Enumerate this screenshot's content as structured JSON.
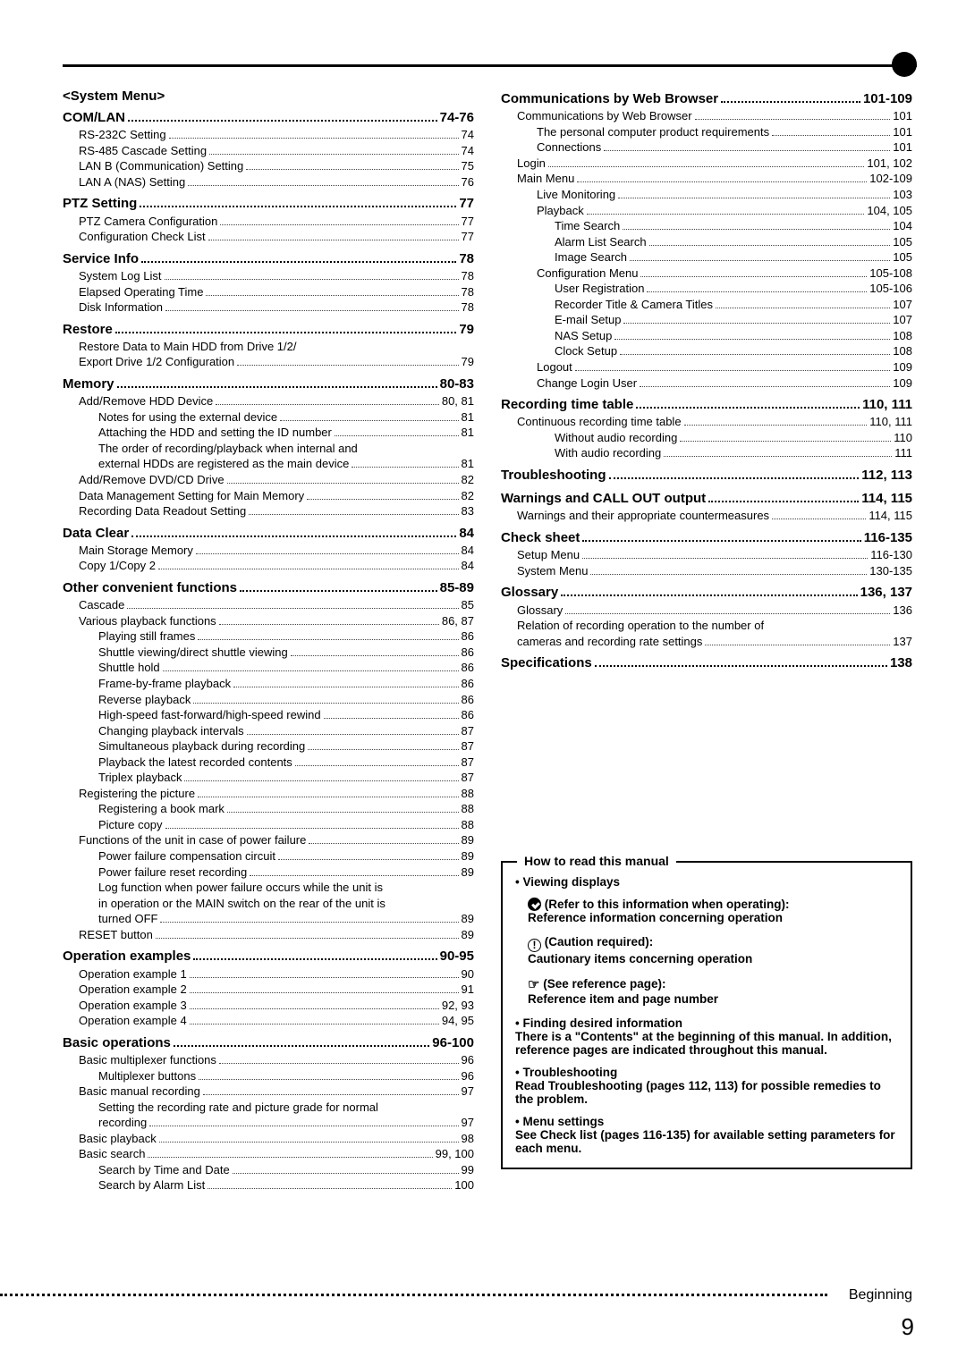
{
  "page_number": "9",
  "bottom_label": "Beginning",
  "left": {
    "system_menu_heading": "<System Menu>",
    "sections": [
      {
        "type": "bold",
        "label": "COM/LAN",
        "pg": "74-76"
      },
      {
        "type": "sub1",
        "label": "RS-232C Setting",
        "pg": "74"
      },
      {
        "type": "sub1",
        "label": "RS-485 Cascade Setting",
        "pg": "74"
      },
      {
        "type": "sub1",
        "label": "LAN B (Communication) Setting",
        "pg": "75"
      },
      {
        "type": "sub1",
        "label": "LAN A (NAS) Setting",
        "pg": "76"
      },
      {
        "type": "bold",
        "label": "PTZ Setting",
        "pg": "77"
      },
      {
        "type": "sub1",
        "label": "PTZ Camera Configuration",
        "pg": "77"
      },
      {
        "type": "sub1",
        "label": "Configuration Check List",
        "pg": "77"
      },
      {
        "type": "bold",
        "label": "Service Info",
        "pg": "78"
      },
      {
        "type": "sub1",
        "label": "System Log List",
        "pg": "78"
      },
      {
        "type": "sub1",
        "label": "Elapsed Operating Time",
        "pg": "78"
      },
      {
        "type": "sub1",
        "label": "Disk Information",
        "pg": "78"
      },
      {
        "type": "bold",
        "label": "Restore",
        "pg": "79"
      },
      {
        "type": "wrap1",
        "label": "Restore Data to Main HDD from Drive 1/2/"
      },
      {
        "type": "sub1",
        "label": "Export Drive 1/2 Configuration",
        "pg": "79"
      },
      {
        "type": "bold",
        "label": "Memory",
        "pg": "80-83"
      },
      {
        "type": "sub1",
        "label": "Add/Remove HDD Device",
        "pg": "80, 81"
      },
      {
        "type": "sub2",
        "label": "Notes for using the external device",
        "pg": "81"
      },
      {
        "type": "sub2",
        "label": "Attaching the HDD and setting the ID number",
        "pg": "81"
      },
      {
        "type": "wrap2",
        "label": "The order of recording/playback when internal and"
      },
      {
        "type": "sub2",
        "label": "external HDDs are registered as the main device",
        "pg": "81",
        "tight": true
      },
      {
        "type": "sub1",
        "label": "Add/Remove DVD/CD Drive",
        "pg": "82"
      },
      {
        "type": "sub1",
        "label": "Data Management Setting for Main Memory",
        "pg": "82"
      },
      {
        "type": "sub1",
        "label": "Recording Data Readout Setting",
        "pg": "83"
      },
      {
        "type": "bold",
        "label": "Data Clear",
        "pg": "84"
      },
      {
        "type": "sub1",
        "label": "Main Storage Memory",
        "pg": "84"
      },
      {
        "type": "sub1",
        "label": "Copy 1/Copy 2",
        "pg": "84"
      },
      {
        "type": "bold",
        "label": "Other convenient functions",
        "pg": "85-89"
      },
      {
        "type": "sub1",
        "label": "Cascade",
        "pg": "85"
      },
      {
        "type": "sub1",
        "label": "Various playback functions",
        "pg": "86, 87"
      },
      {
        "type": "sub2",
        "label": "Playing still frames",
        "pg": "86"
      },
      {
        "type": "sub2",
        "label": "Shuttle viewing/direct shuttle viewing",
        "pg": "86"
      },
      {
        "type": "sub2",
        "label": "Shuttle hold",
        "pg": "86"
      },
      {
        "type": "sub2",
        "label": "Frame-by-frame playback",
        "pg": "86"
      },
      {
        "type": "sub2",
        "label": "Reverse playback",
        "pg": "86"
      },
      {
        "type": "sub2",
        "label": "High-speed fast-forward/high-speed rewind",
        "pg": "86"
      },
      {
        "type": "sub2",
        "label": "Changing playback intervals",
        "pg": "87"
      },
      {
        "type": "sub2",
        "label": "Simultaneous playback during recording",
        "pg": "87"
      },
      {
        "type": "sub2",
        "label": "Playback the latest recorded contents",
        "pg": "87"
      },
      {
        "type": "sub2",
        "label": "Triplex playback",
        "pg": "87"
      },
      {
        "type": "sub1",
        "label": "Registering the picture",
        "pg": "88"
      },
      {
        "type": "sub2",
        "label": "Registering a book mark",
        "pg": "88"
      },
      {
        "type": "sub2",
        "label": "Picture copy",
        "pg": "88"
      },
      {
        "type": "sub1",
        "label": "Functions of the unit in case of power failure",
        "pg": "89"
      },
      {
        "type": "sub2",
        "label": "Power failure compensation circuit",
        "pg": "89"
      },
      {
        "type": "sub2",
        "label": "Power failure reset recording",
        "pg": "89"
      },
      {
        "type": "wrap2",
        "label": "Log function when power failure occurs while the unit is"
      },
      {
        "type": "wrap2",
        "label": "in operation or the MAIN switch on the rear of the unit is"
      },
      {
        "type": "sub2",
        "label": "turned OFF",
        "pg": "89"
      },
      {
        "type": "sub1",
        "label": "RESET button",
        "pg": "89"
      },
      {
        "type": "bold",
        "label": "Operation examples",
        "pg": "90-95"
      },
      {
        "type": "sub1",
        "label": "Operation example 1",
        "pg": "90"
      },
      {
        "type": "sub1",
        "label": "Operation example 2",
        "pg": "91"
      },
      {
        "type": "sub1",
        "label": "Operation example 3",
        "pg": "92, 93"
      },
      {
        "type": "sub1",
        "label": "Operation example 4",
        "pg": "94, 95"
      },
      {
        "type": "bold",
        "label": "Basic operations",
        "pg": "96-100"
      },
      {
        "type": "sub1",
        "label": "Basic multiplexer functions",
        "pg": "96"
      },
      {
        "type": "sub2",
        "label": "Multiplexer buttons",
        "pg": "96"
      },
      {
        "type": "sub1",
        "label": "Basic manual recording",
        "pg": "97"
      },
      {
        "type": "wrap2",
        "label": "Setting the recording rate and picture grade for normal"
      },
      {
        "type": "sub2",
        "label": "recording",
        "pg": "97"
      },
      {
        "type": "sub1",
        "label": "Basic playback",
        "pg": "98"
      },
      {
        "type": "sub1",
        "label": "Basic search",
        "pg": "99, 100"
      },
      {
        "type": "sub2",
        "label": "Search by Time and Date",
        "pg": "99"
      },
      {
        "type": "sub2",
        "label": "Search by Alarm List",
        "pg": "100"
      }
    ]
  },
  "right": {
    "sections": [
      {
        "type": "bold",
        "label": "Communications by Web Browser",
        "pg": "101-109"
      },
      {
        "type": "sub1",
        "label": "Communications by Web Browser",
        "pg": "101"
      },
      {
        "type": "sub2",
        "label": "The personal computer product requirements",
        "pg": "101"
      },
      {
        "type": "sub2",
        "label": "Connections",
        "pg": "101"
      },
      {
        "type": "sub1",
        "label": "Login",
        "pg": "101, 102"
      },
      {
        "type": "sub1",
        "label": "Main Menu",
        "pg": "102-109"
      },
      {
        "type": "sub2",
        "label": "Live Monitoring",
        "pg": "103"
      },
      {
        "type": "sub2",
        "label": "Playback",
        "pg": "104, 105"
      },
      {
        "type": "sub3",
        "label": "Time Search",
        "pg": "104"
      },
      {
        "type": "sub3",
        "label": "Alarm List Search",
        "pg": "105"
      },
      {
        "type": "sub3",
        "label": "Image Search",
        "pg": "105"
      },
      {
        "type": "sub2",
        "label": "Configuration Menu",
        "pg": "105-108"
      },
      {
        "type": "sub3",
        "label": "User Registration",
        "pg": "105-106"
      },
      {
        "type": "sub3",
        "label": "Recorder Title & Camera Titles",
        "pg": "107"
      },
      {
        "type": "sub3",
        "label": "E-mail Setup",
        "pg": "107"
      },
      {
        "type": "sub3",
        "label": "NAS Setup",
        "pg": "108"
      },
      {
        "type": "sub3",
        "label": "Clock Setup",
        "pg": "108"
      },
      {
        "type": "sub2",
        "label": "Logout",
        "pg": "109"
      },
      {
        "type": "sub2",
        "label": "Change Login User",
        "pg": "109"
      },
      {
        "type": "bold",
        "label": "Recording time table",
        "pg": "110, 111"
      },
      {
        "type": "sub1",
        "label": "Continuous recording time table",
        "pg": "110, 111"
      },
      {
        "type": "sub3",
        "label": "Without audio recording",
        "pg": "110"
      },
      {
        "type": "sub3",
        "label": "With audio recording",
        "pg": "111"
      },
      {
        "type": "bold",
        "label": "Troubleshooting",
        "pg": "112, 113"
      },
      {
        "type": "bold",
        "label": "Warnings and CALL OUT output",
        "pg": "114, 115"
      },
      {
        "type": "sub1",
        "label": "Warnings and their appropriate countermeasures",
        "pg": "114, 115",
        "tight": true
      },
      {
        "type": "bold",
        "label": "Check sheet",
        "pg": "116-135"
      },
      {
        "type": "sub1",
        "label": "Setup Menu",
        "pg": "116-130"
      },
      {
        "type": "sub1",
        "label": "System Menu",
        "pg": "130-135"
      },
      {
        "type": "bold",
        "label": "Glossary",
        "pg": "136, 137"
      },
      {
        "type": "sub1",
        "label": "Glossary",
        "pg": "136"
      },
      {
        "type": "wrap1",
        "label": "Relation of recording operation to the number of"
      },
      {
        "type": "sub1",
        "label": "cameras and recording rate settings",
        "pg": "137"
      },
      {
        "type": "bold",
        "label": "Specifications",
        "pg": "138"
      }
    ]
  },
  "info_box": {
    "title": "How to read this manual",
    "viewing_title": "Viewing displays",
    "refer_line": "(Refer to this information when operating):",
    "refer_desc": "Reference information concerning operation",
    "caution_line": "(Caution required):",
    "caution_desc": "Cautionary items concerning operation",
    "seeref_line": "(See reference page):",
    "seeref_desc": "Reference item and page number",
    "finding_title": "Finding desired information",
    "finding_desc": "There is a \"Contents\" at the beginning of this manual. In addition, reference pages are indicated throughout this manual.",
    "trouble_title": "Troubleshooting",
    "trouble_desc": "Read Troubleshooting (pages 112, 113) for possible remedies to the problem.",
    "menu_title": "Menu settings",
    "menu_desc": "See Check list (pages 116-135) for available setting parameters for each menu."
  }
}
